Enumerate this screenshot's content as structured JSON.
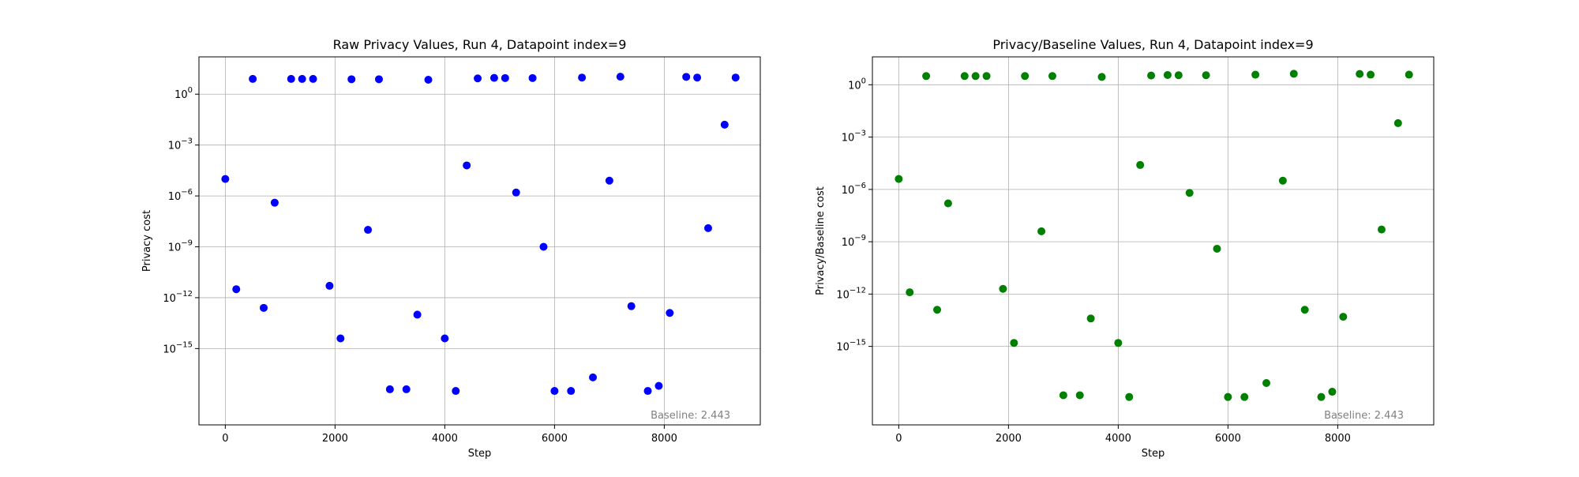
{
  "chart_data": [
    {
      "type": "scatter",
      "title": "Raw Privacy Values, Run 4, Datapoint index=9",
      "xlabel": "Step",
      "ylabel": "Privacy cost",
      "xlim": [
        -480,
        9750
      ],
      "ylim_log10": [
        -19.5,
        2.2
      ],
      "yscale": "log",
      "grid": true,
      "color": "#0000ff",
      "x_ticks": [
        0,
        2000,
        4000,
        6000,
        8000
      ],
      "x_tick_labels": [
        "0",
        "2000",
        "4000",
        "6000",
        "8000"
      ],
      "y_ticks_log10": [
        0,
        -3,
        -6,
        -9,
        -12,
        -15
      ],
      "y_tick_labels": [
        "10^0",
        "10^-3",
        "10^-6",
        "10^-9",
        "10^-12",
        "10^-15"
      ],
      "annotation": "Baseline: 2.443",
      "x": [
        0,
        200,
        500,
        700,
        900,
        1200,
        1400,
        1600,
        1900,
        2100,
        2300,
        2600,
        2800,
        3000,
        3300,
        3500,
        3700,
        4000,
        4200,
        4400,
        4600,
        4900,
        5100,
        5300,
        5600,
        5800,
        6000,
        6300,
        6500,
        6700,
        7000,
        7200,
        7400,
        7700,
        7900,
        8100,
        8400,
        8600,
        8800,
        9100,
        9300
      ],
      "y_log10": [
        -5.0,
        -11.5,
        0.9,
        -12.6,
        -6.4,
        0.9,
        0.9,
        0.9,
        -11.3,
        -14.4,
        0.88,
        -8.0,
        0.88,
        -17.4,
        -17.4,
        -13.0,
        0.85,
        -14.4,
        -17.5,
        -4.2,
        0.93,
        0.96,
        0.95,
        -5.8,
        0.95,
        -9.0,
        -17.5,
        -17.5,
        0.98,
        -16.7,
        -5.1,
        1.03,
        -12.5,
        -17.5,
        -17.2,
        -12.9,
        1.02,
        0.98,
        -7.9,
        -1.8,
        0.98
      ]
    },
    {
      "type": "scatter",
      "title": "Privacy/Baseline Values, Run 4, Datapoint index=9",
      "xlabel": "Step",
      "ylabel": "Privacy/Baseline cost",
      "xlim": [
        -480,
        9750
      ],
      "ylim_log10": [
        -19.5,
        1.6
      ],
      "yscale": "log",
      "grid": true,
      "color": "#008000",
      "x_ticks": [
        0,
        2000,
        4000,
        6000,
        8000
      ],
      "x_tick_labels": [
        "0",
        "2000",
        "4000",
        "6000",
        "8000"
      ],
      "y_ticks_log10": [
        0,
        -3,
        -6,
        -9,
        -12,
        -15
      ],
      "y_tick_labels": [
        "10^0",
        "10^-3",
        "10^-6",
        "10^-9",
        "10^-12",
        "10^-15"
      ],
      "annotation": "Baseline: 2.443",
      "x": [
        0,
        200,
        500,
        700,
        900,
        1200,
        1400,
        1600,
        1900,
        2100,
        2300,
        2600,
        2800,
        3000,
        3300,
        3500,
        3700,
        4000,
        4200,
        4400,
        4600,
        4900,
        5100,
        5300,
        5600,
        5800,
        6000,
        6300,
        6500,
        6700,
        7000,
        7200,
        7400,
        7700,
        7900,
        8100,
        8400,
        8600,
        8800,
        9100,
        9300
      ],
      "y_log10": [
        -5.4,
        -11.9,
        0.5,
        -12.9,
        -6.8,
        0.5,
        0.5,
        0.5,
        -11.7,
        -14.8,
        0.5,
        -8.4,
        0.5,
        -17.8,
        -17.8,
        -13.4,
        0.45,
        -14.8,
        -17.9,
        -4.6,
        0.53,
        0.56,
        0.55,
        -6.2,
        0.55,
        -9.4,
        -17.9,
        -17.9,
        0.58,
        -17.1,
        -5.5,
        0.63,
        -12.9,
        -17.9,
        -17.6,
        -13.3,
        0.62,
        0.58,
        -8.3,
        -2.2,
        0.58
      ]
    }
  ]
}
